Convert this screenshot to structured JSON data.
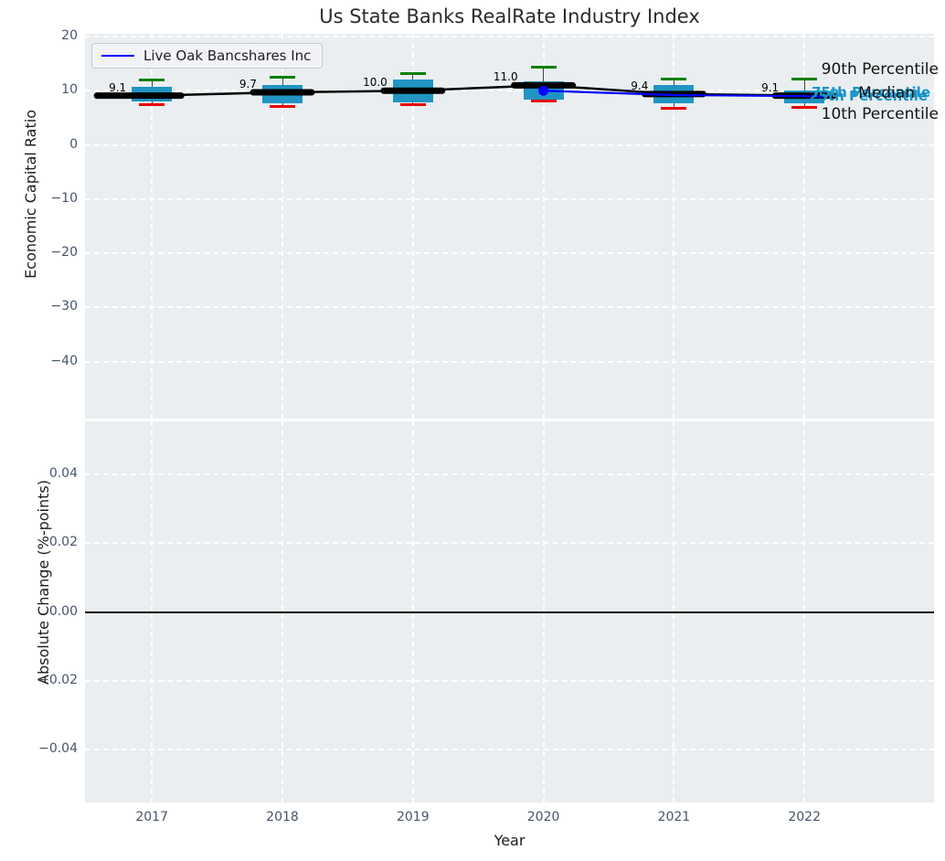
{
  "figure": {
    "title": "Us State Banks RealRate Industry Index"
  },
  "legend": {
    "label": "Live Oak Bancshares Inc"
  },
  "chart_data": {
    "type": "boxplot+line",
    "title": "Us State Banks RealRate Industry Index",
    "xlabel": "Year",
    "categories": [
      "2017",
      "2018",
      "2019",
      "2020",
      "2021",
      "2022"
    ],
    "top_panel": {
      "ylabel": "Economic Capital Ratio",
      "ylim": [
        -50.5,
        20.5
      ],
      "ytick_values": [
        20,
        10,
        0,
        -10,
        -20,
        -30,
        -40
      ],
      "ytick_labels": [
        "20",
        "10",
        "0",
        "−10",
        "−20",
        "−30",
        "−40"
      ],
      "grid": "white-dashed",
      "box_series": {
        "p90": [
          12.0,
          12.5,
          13.2,
          14.3,
          12.1,
          12.1
        ],
        "p75": [
          10.8,
          11.1,
          12.0,
          11.8,
          11.0,
          10.1
        ],
        "median": [
          9.1,
          9.7,
          10.0,
          11.0,
          9.4,
          9.1
        ],
        "p25": [
          8.1,
          7.6,
          7.8,
          8.4,
          7.6,
          7.6
        ],
        "p10": [
          7.4,
          7.1,
          7.4,
          8.1,
          6.7,
          6.9
        ]
      },
      "median_labels": [
        "9.1",
        "9.7",
        "10.0",
        "11.0",
        "9.4",
        "9.1"
      ],
      "company_series": {
        "name": "Live Oak Bancshares Inc",
        "x": [
          "2020",
          "2021",
          "2022"
        ],
        "y": [
          10.0,
          9.2,
          9.0
        ]
      },
      "annotations": {
        "p90_label": "90th Percentile",
        "p75_label": "75th Percentile",
        "median_label": "Median",
        "p25_label": "25th Percentile",
        "p10_label": "10th Percentile"
      }
    },
    "bottom_panel": {
      "ylabel": "Absolute Change (%-points)",
      "ylim": [
        -0.0555,
        0.0555
      ],
      "ytick_values": [
        0.04,
        0.02,
        0.0,
        -0.02,
        -0.04
      ],
      "ytick_labels": [
        "0.04",
        "0.02",
        "0.00",
        "−0.02",
        "−0.04"
      ],
      "zero_line_value": 0.0
    },
    "colors": {
      "box_fill": "#2095c3",
      "p90_cap": "#008000",
      "p10_cap": "#e60000",
      "median_line": "#000000",
      "company_line": "#0000ff",
      "percentile_text": "#1694c8",
      "plot_bg": "#eaeef0",
      "grid": "#ffffff",
      "tick_text": "#47556b"
    }
  }
}
